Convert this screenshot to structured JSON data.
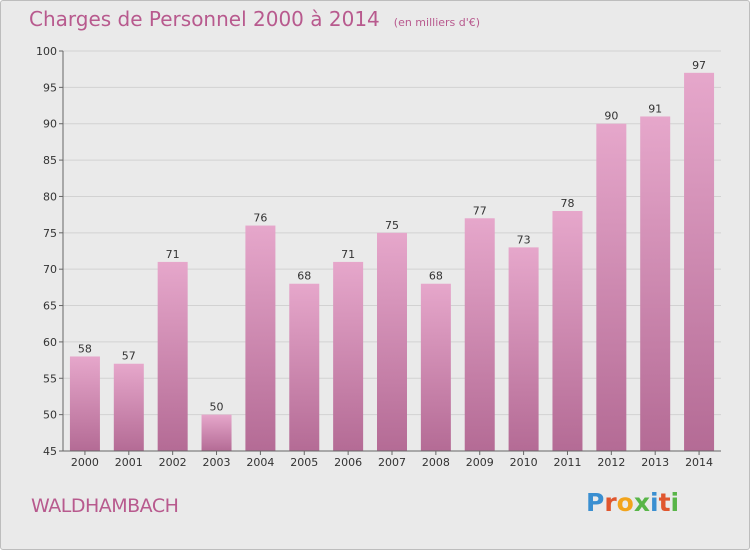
{
  "chart_data": {
    "type": "bar",
    "title": "Charges de Personnel 2000 à 2014",
    "subtitle": "(en milliers d'€)",
    "categories": [
      "2000",
      "2001",
      "2002",
      "2003",
      "2004",
      "2005",
      "2006",
      "2007",
      "2008",
      "2009",
      "2010",
      "2011",
      "2012",
      "2013",
      "2014"
    ],
    "values": [
      58,
      57,
      71,
      50,
      76,
      68,
      71,
      75,
      68,
      77,
      73,
      78,
      90,
      91,
      97
    ],
    "ylim": [
      45,
      100
    ],
    "yticks": [
      45,
      50,
      55,
      60,
      65,
      70,
      75,
      80,
      85,
      90,
      95,
      100
    ],
    "grid": true,
    "bar_color_top": "#e6a7cb",
    "bar_color_bottom": "#b46b95"
  },
  "footer": {
    "commune": "WALDHAMBACH",
    "logo": "Proxiti"
  }
}
